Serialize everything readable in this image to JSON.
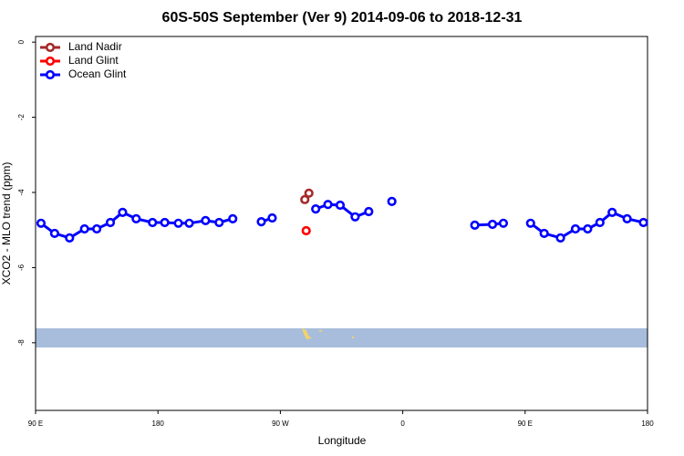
{
  "chart_data": {
    "type": "line",
    "title": "60S-50S September (Ver 9)   2014-09-06 to 2018-12-31",
    "x_label": "Longitude",
    "y_label": "XCO2 - MLO trend (ppm)",
    "xlim": [
      90,
      540
    ],
    "ylim": [
      -9.8,
      0.15
    ],
    "xticks": [
      {
        "value": 90,
        "label": "90 E"
      },
      {
        "value": 180,
        "label": "180"
      },
      {
        "value": 270,
        "label": "90 W"
      },
      {
        "value": 360,
        "label": "0"
      },
      {
        "value": 450,
        "label": "90 E"
      },
      {
        "value": 540,
        "label": "180"
      }
    ],
    "yticks": [
      0,
      -2,
      -4,
      -6,
      -8
    ],
    "legend": "top-left",
    "series": [
      {
        "name": "Land Nadir",
        "color": "#a52a2a",
        "x": [
          288,
          291
        ],
        "values": [
          -4.19,
          -4.02
        ]
      },
      {
        "name": "Land Glint",
        "color": "#ff0000",
        "x": [
          289
        ],
        "values": [
          -5.02
        ]
      },
      {
        "name": "Ocean Glint",
        "color": "#0000ff",
        "x": [
          94,
          104,
          115,
          126,
          135,
          145,
          154,
          164,
          176,
          185,
          195,
          203,
          215,
          225,
          235,
          null,
          256,
          264,
          null,
          296,
          305,
          314,
          325,
          335,
          null,
          352,
          null,
          413,
          426,
          434,
          null,
          454,
          464,
          476,
          487,
          496,
          505,
          514,
          525,
          537
        ],
        "values": [
          -4.82,
          -5.09,
          -5.21,
          -4.97,
          -4.97,
          -4.8,
          -4.53,
          -4.7,
          -4.8,
          -4.8,
          -4.82,
          -4.82,
          -4.75,
          -4.8,
          -4.7,
          null,
          -4.78,
          -4.68,
          null,
          -4.44,
          -4.32,
          -4.34,
          -4.65,
          -4.51,
          null,
          -4.24,
          null,
          -4.87,
          -4.85,
          -4.82,
          null,
          -4.82,
          -5.09,
          -5.21,
          -4.97,
          -4.97,
          -4.8,
          -4.53,
          -4.7,
          -4.8
        ]
      }
    ]
  }
}
